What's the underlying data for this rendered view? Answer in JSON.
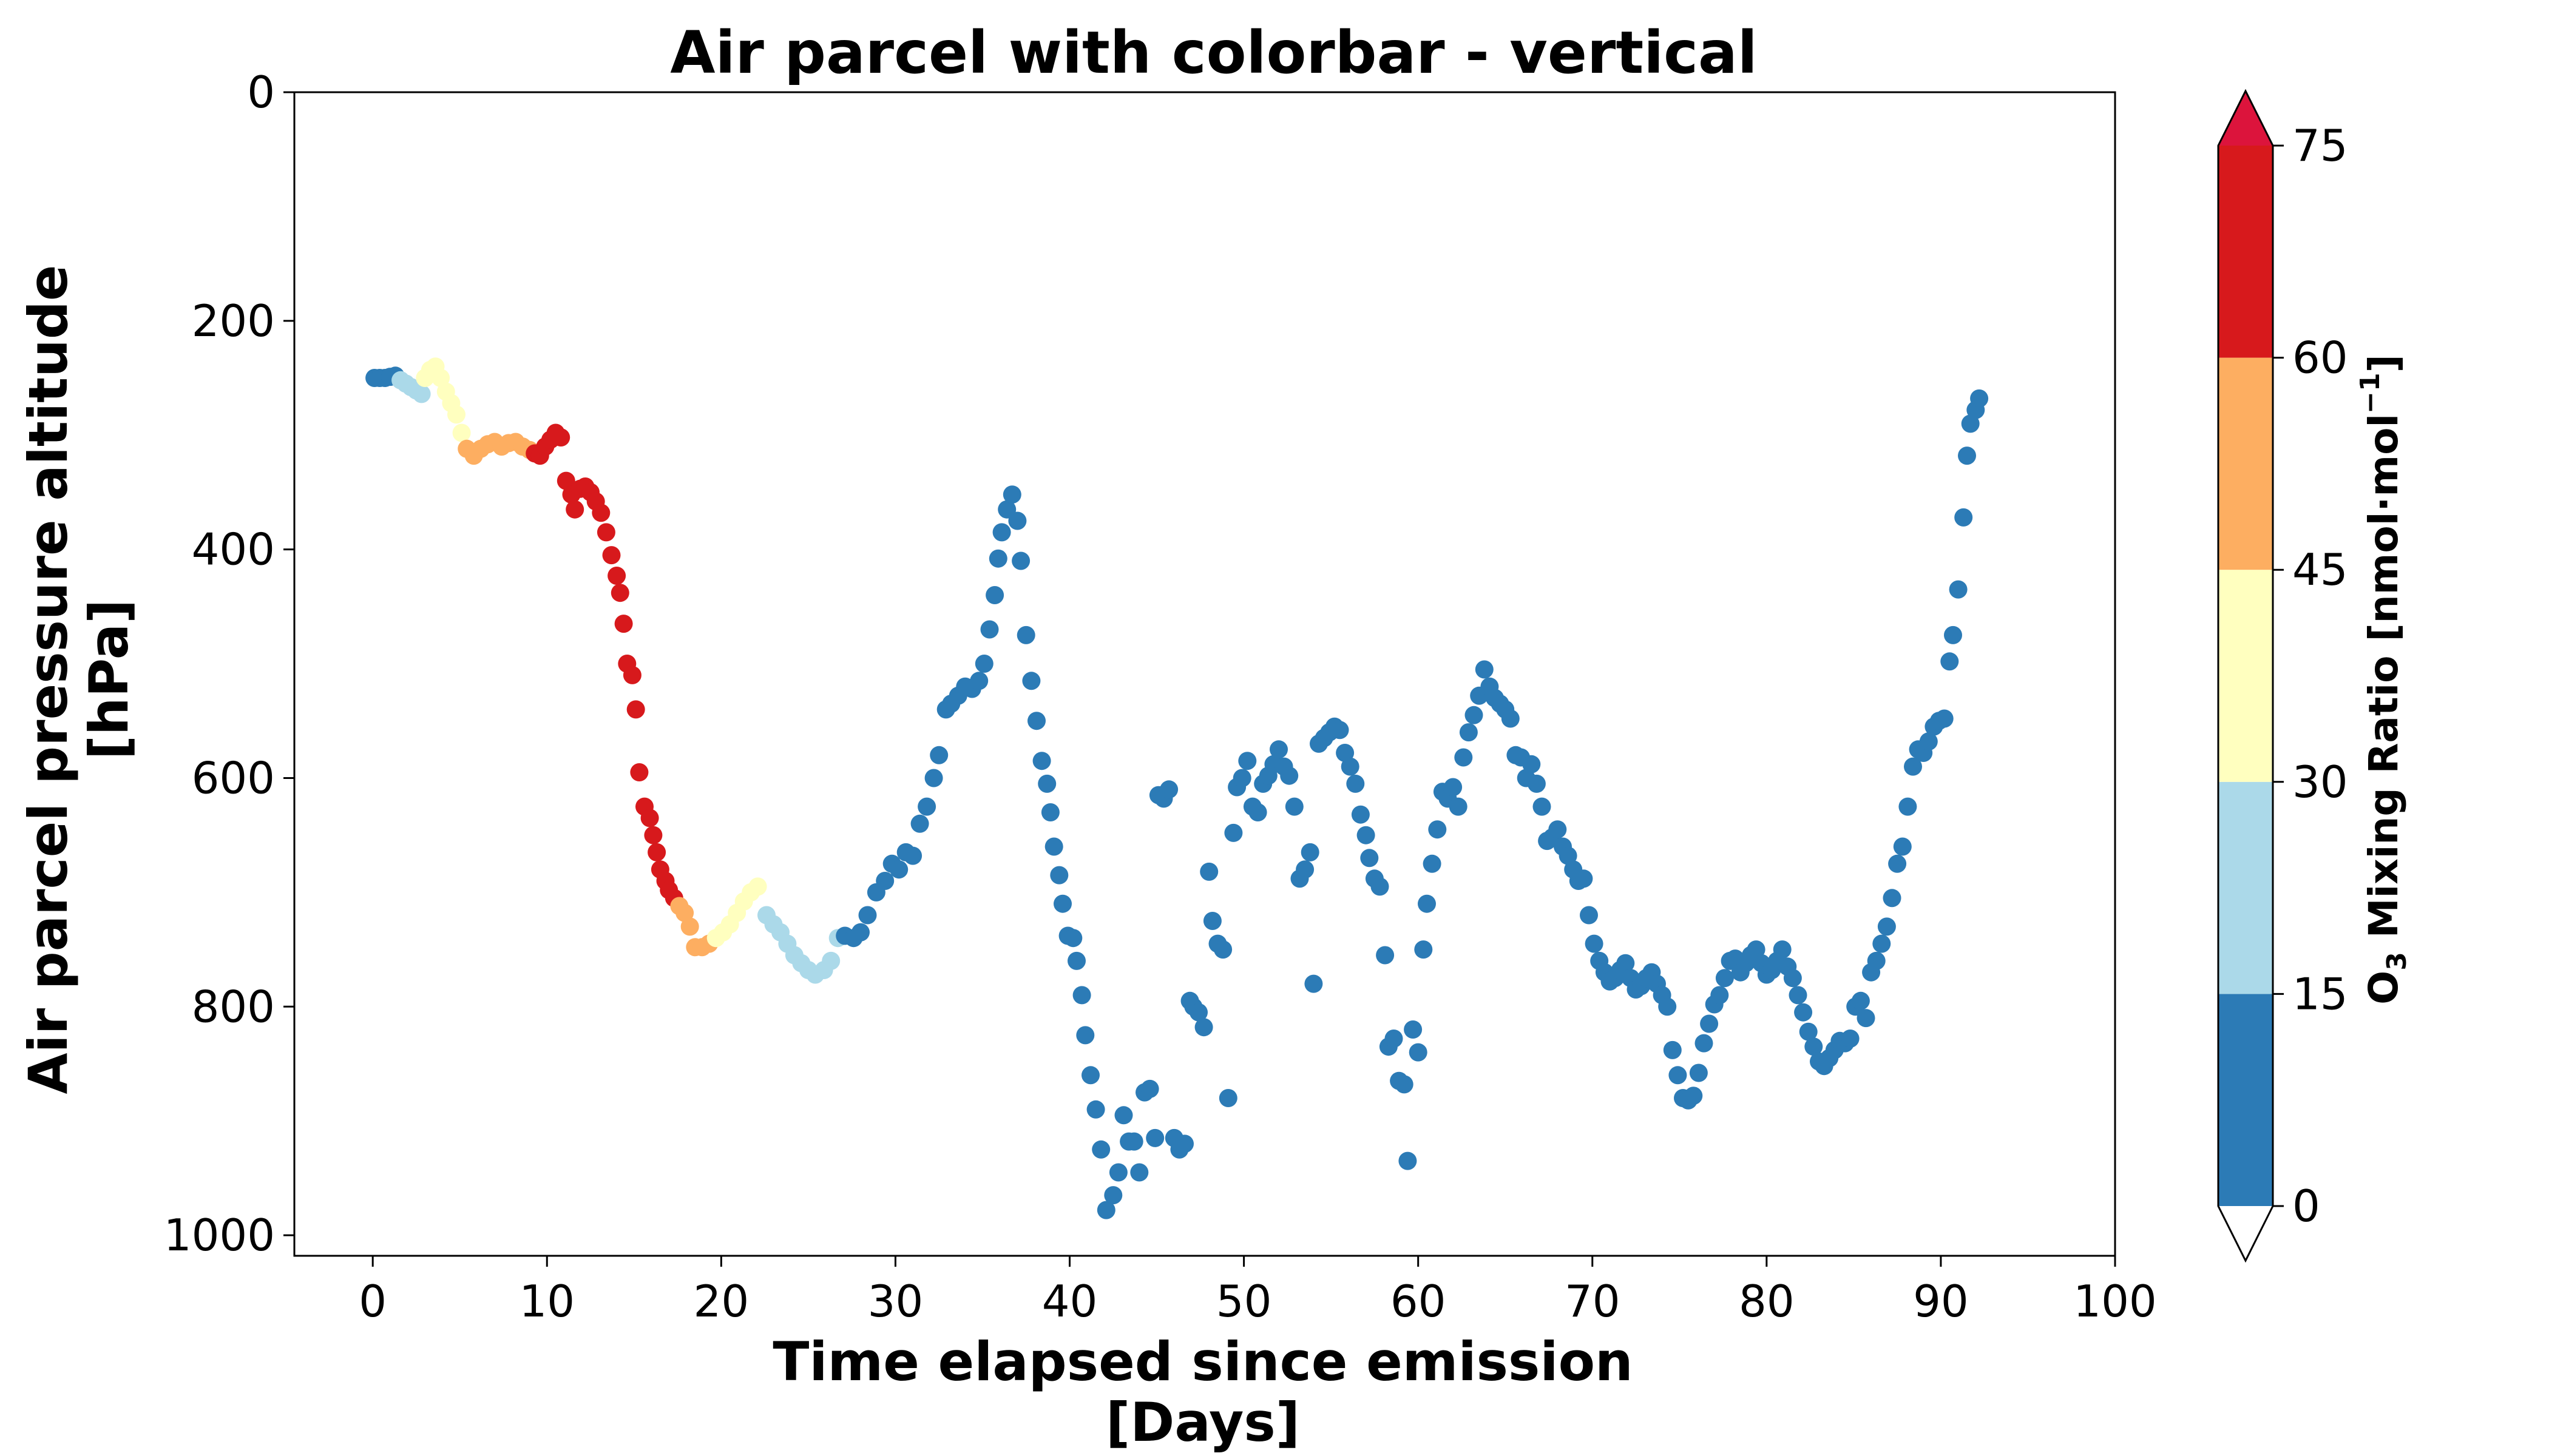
{
  "chart_data": {
    "type": "scatter",
    "title": "Air parcel with colorbar - vertical",
    "xlabel": [
      "Time elapsed since emission",
      "[Days]"
    ],
    "ylabel": [
      "Air parcel pressure altitude",
      "[hPa]"
    ],
    "xlim": [
      -4.5,
      100
    ],
    "ylim": [
      1018,
      0
    ],
    "y_inverted": true,
    "grid": false,
    "xticks": [
      0,
      10,
      20,
      30,
      40,
      50,
      60,
      70,
      80,
      90,
      100
    ],
    "yticks": [
      0,
      200,
      400,
      600,
      800,
      1000
    ],
    "colorbar": {
      "label_prefix": "O",
      "label_sub": "3",
      "label_mid": " Mixing Ratio [nmol·mol",
      "label_sup": "−1",
      "label_suffix": "]",
      "orientation": "vertical",
      "ticks": [
        0,
        15,
        30,
        45,
        60,
        75
      ],
      "bins": [
        {
          "min": 0,
          "max": 15,
          "color": "#2c7bb6"
        },
        {
          "min": 15,
          "max": 30,
          "color": "#abd9e9"
        },
        {
          "min": 30,
          "max": 45,
          "color": "#ffffbf"
        },
        {
          "min": 45,
          "max": 60,
          "color": "#fdae61"
        },
        {
          "min": 60,
          "max": 75,
          "color": "#d7191c"
        }
      ],
      "extend_max_color": "#dc143c",
      "extend_min_color": "#ffffff"
    },
    "points": [
      [
        0.1,
        250,
        5
      ],
      [
        0.4,
        250,
        5
      ],
      [
        0.7,
        250,
        5
      ],
      [
        1.0,
        249,
        5
      ],
      [
        1.3,
        248,
        5
      ],
      [
        1.6,
        252,
        20
      ],
      [
        1.9,
        255,
        20
      ],
      [
        2.2,
        258,
        20
      ],
      [
        2.5,
        261,
        20
      ],
      [
        2.8,
        264,
        20
      ],
      [
        3.0,
        250,
        38
      ],
      [
        3.3,
        243,
        38
      ],
      [
        3.6,
        240,
        38
      ],
      [
        3.9,
        250,
        38
      ],
      [
        4.2,
        262,
        38
      ],
      [
        4.5,
        272,
        38
      ],
      [
        4.8,
        282,
        38
      ],
      [
        5.1,
        298,
        38
      ],
      [
        5.4,
        312,
        52
      ],
      [
        5.8,
        318,
        52
      ],
      [
        6.2,
        312,
        52
      ],
      [
        6.6,
        308,
        52
      ],
      [
        7.0,
        306,
        52
      ],
      [
        7.4,
        310,
        52
      ],
      [
        7.8,
        307,
        52
      ],
      [
        8.2,
        306,
        52
      ],
      [
        8.6,
        310,
        52
      ],
      [
        9.0,
        313,
        52
      ],
      [
        9.3,
        316,
        68
      ],
      [
        9.6,
        318,
        68
      ],
      [
        9.9,
        310,
        68
      ],
      [
        10.2,
        304,
        68
      ],
      [
        10.5,
        298,
        68
      ],
      [
        10.8,
        302,
        68
      ],
      [
        11.1,
        340,
        68
      ],
      [
        11.4,
        352,
        68
      ],
      [
        11.6,
        365,
        68
      ],
      [
        11.9,
        347,
        68
      ],
      [
        12.2,
        345,
        68
      ],
      [
        12.5,
        350,
        68
      ],
      [
        12.8,
        358,
        68
      ],
      [
        13.1,
        368,
        68
      ],
      [
        13.4,
        385,
        68
      ],
      [
        13.7,
        405,
        68
      ],
      [
        14.0,
        423,
        68
      ],
      [
        14.2,
        438,
        68
      ],
      [
        14.4,
        465,
        68
      ],
      [
        14.6,
        500,
        68
      ],
      [
        14.9,
        510,
        68
      ],
      [
        15.1,
        540,
        68
      ],
      [
        15.3,
        595,
        68
      ],
      [
        15.6,
        625,
        68
      ],
      [
        15.9,
        635,
        68
      ],
      [
        16.1,
        650,
        68
      ],
      [
        16.3,
        665,
        68
      ],
      [
        16.5,
        680,
        68
      ],
      [
        16.8,
        690,
        68
      ],
      [
        17.0,
        698,
        68
      ],
      [
        17.3,
        705,
        68
      ],
      [
        17.6,
        712,
        52
      ],
      [
        17.9,
        718,
        52
      ],
      [
        18.2,
        730,
        52
      ],
      [
        18.5,
        748,
        52
      ],
      [
        18.9,
        748,
        52
      ],
      [
        19.3,
        745,
        52
      ],
      [
        19.7,
        740,
        38
      ],
      [
        20.1,
        735,
        38
      ],
      [
        20.5,
        728,
        38
      ],
      [
        20.9,
        718,
        38
      ],
      [
        21.3,
        708,
        38
      ],
      [
        21.7,
        700,
        38
      ],
      [
        22.1,
        695,
        38
      ],
      [
        22.6,
        720,
        20
      ],
      [
        23.0,
        728,
        20
      ],
      [
        23.4,
        735,
        20
      ],
      [
        23.8,
        745,
        20
      ],
      [
        24.2,
        755,
        20
      ],
      [
        24.6,
        762,
        20
      ],
      [
        25.0,
        768,
        20
      ],
      [
        25.4,
        772,
        20
      ],
      [
        25.9,
        768,
        20
      ],
      [
        26.3,
        760,
        20
      ],
      [
        26.7,
        740,
        20
      ],
      [
        27.1,
        738,
        5
      ],
      [
        27.6,
        740,
        5
      ],
      [
        28.0,
        735,
        5
      ],
      [
        28.4,
        720,
        5
      ],
      [
        28.9,
        700,
        5
      ],
      [
        29.4,
        690,
        5
      ],
      [
        29.8,
        675,
        5
      ],
      [
        30.2,
        680,
        5
      ],
      [
        30.6,
        665,
        5
      ],
      [
        31.0,
        668,
        5
      ],
      [
        31.4,
        640,
        5
      ],
      [
        31.8,
        625,
        5
      ],
      [
        32.2,
        600,
        5
      ],
      [
        32.5,
        580,
        5
      ],
      [
        32.9,
        540,
        5
      ],
      [
        33.2,
        535,
        5
      ],
      [
        33.6,
        528,
        5
      ],
      [
        34.0,
        520,
        5
      ],
      [
        34.4,
        522,
        5
      ],
      [
        34.8,
        515,
        5
      ],
      [
        35.1,
        500,
        5
      ],
      [
        35.4,
        470,
        5
      ],
      [
        35.7,
        440,
        5
      ],
      [
        35.9,
        408,
        5
      ],
      [
        36.1,
        385,
        5
      ],
      [
        36.4,
        365,
        5
      ],
      [
        36.7,
        352,
        5
      ],
      [
        37.0,
        375,
        5
      ],
      [
        37.2,
        410,
        5
      ],
      [
        37.5,
        475,
        5
      ],
      [
        37.8,
        515,
        5
      ],
      [
        38.1,
        550,
        5
      ],
      [
        38.4,
        585,
        5
      ],
      [
        38.7,
        605,
        5
      ],
      [
        38.9,
        630,
        5
      ],
      [
        39.1,
        660,
        5
      ],
      [
        39.4,
        685,
        5
      ],
      [
        39.6,
        710,
        5
      ],
      [
        39.9,
        738,
        5
      ],
      [
        40.2,
        740,
        5
      ],
      [
        40.4,
        760,
        5
      ],
      [
        40.7,
        790,
        5
      ],
      [
        40.9,
        825,
        5
      ],
      [
        41.2,
        860,
        5
      ],
      [
        41.5,
        890,
        5
      ],
      [
        41.8,
        925,
        5
      ],
      [
        42.1,
        978,
        5
      ],
      [
        42.5,
        965,
        5
      ],
      [
        42.8,
        945,
        5
      ],
      [
        43.1,
        895,
        5
      ],
      [
        43.4,
        918,
        5
      ],
      [
        43.7,
        918,
        5
      ],
      [
        44.0,
        945,
        5
      ],
      [
        44.3,
        875,
        5
      ],
      [
        44.6,
        872,
        5
      ],
      [
        44.9,
        915,
        5
      ],
      [
        45.1,
        615,
        5
      ],
      [
        45.4,
        618,
        5
      ],
      [
        45.7,
        610,
        5
      ],
      [
        46.0,
        915,
        5
      ],
      [
        46.3,
        925,
        5
      ],
      [
        46.6,
        920,
        5
      ],
      [
        46.9,
        795,
        5
      ],
      [
        47.1,
        800,
        5
      ],
      [
        47.4,
        805,
        5
      ],
      [
        47.7,
        818,
        5
      ],
      [
        48.0,
        682,
        5
      ],
      [
        48.2,
        725,
        5
      ],
      [
        48.5,
        745,
        5
      ],
      [
        48.8,
        750,
        5
      ],
      [
        49.1,
        880,
        5
      ],
      [
        49.4,
        648,
        5
      ],
      [
        49.6,
        608,
        5
      ],
      [
        49.9,
        600,
        5
      ],
      [
        50.2,
        585,
        5
      ],
      [
        50.5,
        625,
        5
      ],
      [
        50.8,
        630,
        5
      ],
      [
        51.1,
        605,
        5
      ],
      [
        51.4,
        598,
        5
      ],
      [
        51.7,
        588,
        5
      ],
      [
        52.0,
        575,
        5
      ],
      [
        52.3,
        590,
        5
      ],
      [
        52.6,
        598,
        5
      ],
      [
        52.9,
        625,
        5
      ],
      [
        53.2,
        688,
        5
      ],
      [
        53.5,
        680,
        5
      ],
      [
        53.8,
        665,
        5
      ],
      [
        54.0,
        780,
        5
      ],
      [
        54.3,
        570,
        5
      ],
      [
        54.6,
        565,
        5
      ],
      [
        54.9,
        560,
        5
      ],
      [
        55.2,
        555,
        5
      ],
      [
        55.5,
        558,
        5
      ],
      [
        55.8,
        578,
        5
      ],
      [
        56.1,
        590,
        5
      ],
      [
        56.4,
        605,
        5
      ],
      [
        56.7,
        632,
        5
      ],
      [
        57.0,
        650,
        5
      ],
      [
        57.2,
        670,
        5
      ],
      [
        57.5,
        688,
        5
      ],
      [
        57.8,
        695,
        5
      ],
      [
        58.1,
        755,
        5
      ],
      [
        58.3,
        835,
        5
      ],
      [
        58.6,
        828,
        5
      ],
      [
        58.9,
        865,
        5
      ],
      [
        59.2,
        868,
        5
      ],
      [
        59.4,
        935,
        5
      ],
      [
        59.7,
        820,
        5
      ],
      [
        60.0,
        840,
        5
      ],
      [
        60.3,
        750,
        5
      ],
      [
        60.5,
        710,
        5
      ],
      [
        60.8,
        675,
        5
      ],
      [
        61.1,
        645,
        5
      ],
      [
        61.4,
        612,
        5
      ],
      [
        61.7,
        618,
        5
      ],
      [
        62.0,
        608,
        5
      ],
      [
        62.3,
        625,
        5
      ],
      [
        62.6,
        582,
        5
      ],
      [
        62.9,
        560,
        5
      ],
      [
        63.2,
        545,
        5
      ],
      [
        63.5,
        528,
        5
      ],
      [
        63.8,
        505,
        5
      ],
      [
        64.1,
        520,
        5
      ],
      [
        64.4,
        530,
        5
      ],
      [
        64.7,
        535,
        5
      ],
      [
        65.0,
        540,
        5
      ],
      [
        65.3,
        548,
        5
      ],
      [
        65.6,
        580,
        5
      ],
      [
        65.9,
        582,
        5
      ],
      [
        66.2,
        600,
        5
      ],
      [
        66.5,
        588,
        5
      ],
      [
        66.8,
        605,
        5
      ],
      [
        67.1,
        625,
        5
      ],
      [
        67.4,
        655,
        5
      ],
      [
        67.7,
        652,
        5
      ],
      [
        68.0,
        645,
        5
      ],
      [
        68.3,
        660,
        5
      ],
      [
        68.6,
        668,
        5
      ],
      [
        68.9,
        680,
        5
      ],
      [
        69.2,
        690,
        5
      ],
      [
        69.5,
        688,
        5
      ],
      [
        69.8,
        720,
        5
      ],
      [
        70.1,
        745,
        5
      ],
      [
        70.4,
        760,
        5
      ],
      [
        70.7,
        770,
        5
      ],
      [
        71.0,
        778,
        5
      ],
      [
        71.3,
        775,
        5
      ],
      [
        71.6,
        768,
        5
      ],
      [
        71.9,
        762,
        5
      ],
      [
        72.2,
        775,
        5
      ],
      [
        72.5,
        785,
        5
      ],
      [
        72.8,
        782,
        5
      ],
      [
        73.1,
        775,
        5
      ],
      [
        73.4,
        770,
        5
      ],
      [
        73.7,
        780,
        5
      ],
      [
        74.0,
        790,
        5
      ],
      [
        74.3,
        800,
        5
      ],
      [
        74.6,
        838,
        5
      ],
      [
        74.9,
        860,
        5
      ],
      [
        75.2,
        880,
        5
      ],
      [
        75.5,
        882,
        5
      ],
      [
        75.8,
        878,
        5
      ],
      [
        76.1,
        858,
        5
      ],
      [
        76.4,
        832,
        5
      ],
      [
        76.7,
        815,
        5
      ],
      [
        77.0,
        798,
        5
      ],
      [
        77.3,
        790,
        5
      ],
      [
        77.6,
        775,
        5
      ],
      [
        77.9,
        760,
        5
      ],
      [
        78.2,
        758,
        5
      ],
      [
        78.5,
        770,
        5
      ],
      [
        78.8,
        762,
        5
      ],
      [
        79.1,
        755,
        5
      ],
      [
        79.4,
        750,
        5
      ],
      [
        79.7,
        762,
        5
      ],
      [
        80.0,
        772,
        5
      ],
      [
        80.3,
        768,
        5
      ],
      [
        80.6,
        760,
        5
      ],
      [
        80.9,
        750,
        5
      ],
      [
        81.2,
        765,
        5
      ],
      [
        81.5,
        775,
        5
      ],
      [
        81.8,
        790,
        5
      ],
      [
        82.1,
        805,
        5
      ],
      [
        82.4,
        822,
        5
      ],
      [
        82.7,
        835,
        5
      ],
      [
        83.0,
        848,
        5
      ],
      [
        83.3,
        852,
        5
      ],
      [
        83.6,
        845,
        5
      ],
      [
        83.9,
        838,
        5
      ],
      [
        84.2,
        830,
        5
      ],
      [
        84.5,
        832,
        5
      ],
      [
        84.8,
        828,
        5
      ],
      [
        85.1,
        800,
        5
      ],
      [
        85.4,
        795,
        5
      ],
      [
        85.7,
        810,
        5
      ],
      [
        86.0,
        770,
        5
      ],
      [
        86.3,
        760,
        5
      ],
      [
        86.6,
        745,
        5
      ],
      [
        86.9,
        730,
        5
      ],
      [
        87.2,
        705,
        5
      ],
      [
        87.5,
        675,
        5
      ],
      [
        87.8,
        660,
        5
      ],
      [
        88.1,
        625,
        5
      ],
      [
        88.4,
        590,
        5
      ],
      [
        88.7,
        575,
        5
      ],
      [
        89.0,
        578,
        5
      ],
      [
        89.3,
        568,
        5
      ],
      [
        89.6,
        555,
        5
      ],
      [
        89.9,
        550,
        5
      ],
      [
        90.2,
        548,
        5
      ],
      [
        90.5,
        498,
        5
      ],
      [
        90.7,
        475,
        5
      ],
      [
        91.0,
        435,
        5
      ],
      [
        91.3,
        372,
        5
      ],
      [
        91.5,
        318,
        5
      ],
      [
        91.7,
        290,
        5
      ],
      [
        92.0,
        278,
        5
      ],
      [
        92.2,
        268,
        5
      ]
    ]
  }
}
